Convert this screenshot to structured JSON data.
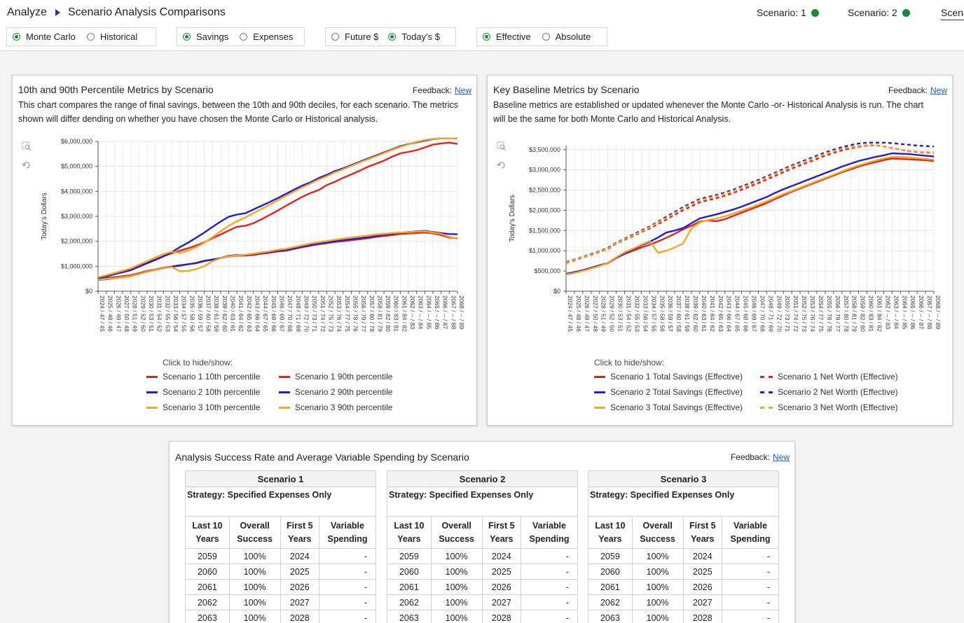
{
  "header": {
    "breadcrumb_root": "Analyze",
    "breadcrumb_page": "Scenario Analysis Comparisons",
    "scenarios": [
      {
        "label": "Scenario: 1",
        "status_color": "#1a8a3a"
      },
      {
        "label": "Scenario: 2",
        "status_color": "#1a8a3a"
      },
      {
        "label": "Scena"
      }
    ]
  },
  "toggles": {
    "analysis": {
      "options": [
        "Monte Carlo",
        "Historical"
      ],
      "selected": "Monte Carlo"
    },
    "measure": {
      "options": [
        "Savings",
        "Expenses"
      ],
      "selected": "Savings"
    },
    "dollars": {
      "options": [
        "Future $",
        "Today's $"
      ],
      "selected": "Today's $"
    },
    "mode": {
      "options": [
        "Effective",
        "Absolute"
      ],
      "selected": "Effective"
    }
  },
  "left_card": {
    "title": "10th and 90th Percentile Metrics by Scenario",
    "feedback_label": "Feedback:",
    "feedback_link": "New",
    "description_1": "This chart compares the range of final savings, between the 10th and 90th deciles, for each scenario. The metrics",
    "description_2": "shown will differ dending on whether you have chosen the Monte Carlo or Historical analysis.",
    "legend_title": "Click to hide/show:"
  },
  "right_card": {
    "title": "Key Baseline Metrics by Scenario",
    "feedback_label": "Feedback:",
    "feedback_link": "New",
    "description_1": "Baseline metrics are established or updated whenever the Monte Carlo -or- Historical Analysis is run. The chart",
    "description_2": "will be the same for both Monte Carlo and Historical Analysis.",
    "legend_title": "Click to hide/show:"
  },
  "colors": {
    "scenario1": "#e8211c",
    "scenario2": "#1f1fd1",
    "scenario3": "#f5a623"
  },
  "icons": [
    "zoom-icon",
    "reset-icon"
  ],
  "chart_data": [
    {
      "type": "line",
      "title": "",
      "ylabel": "Today's Dollars",
      "xlabel": "",
      "ylim": [
        0,
        6000000
      ],
      "yticks": [
        "$0",
        "$1,000,000",
        "$2,000,000",
        "$3,000,000",
        "$4,000,000",
        "$5,000,000",
        "$6,000,000"
      ],
      "categories": [
        "2024 / 47 / 45",
        "2025 / 48 / 46",
        "2026 / 49 / 47",
        "2027 / 50 / 48",
        "2028 / 51 / 49",
        "2029 / 52 / 50",
        "2030 / 53 / 51",
        "2031 / 54 / 52",
        "2032 / 55 / 53",
        "2033 / 56 / 54",
        "2034 / 57 / 55",
        "2035 / 58 / 56",
        "2036 / 59 / 57",
        "2037 / 60 / 58",
        "2038 / 61 / 59",
        "2039 / 62 / 60",
        "2040 / 63 / 61",
        "2041 / 64 / 62",
        "2042 / 65 / 63",
        "2043 / 66 / 64",
        "2044 / 67 / 65",
        "2045 / 68 / 66",
        "2046 / 69 / 67",
        "2047 / 70 / 68",
        "2048 / 71 / 69",
        "2049 / 72 / 70",
        "2050 / 73 / 71",
        "2051 / 74 / 72",
        "2052 / 75 / 73",
        "2053 / 76 / 74",
        "2054 / 77 / 75",
        "2055 / 78 / 76",
        "2056 / 79 / 77",
        "2057 / 80 / 78",
        "2058 / 81 / 79",
        "2059 / 82 / 80",
        "2060 / 83 / 81",
        "2061 / 84 / 82",
        "2062 / -- / 83",
        "2063 / -- / 84",
        "2064 / -- / 85",
        "2065 / -- / 86",
        "2066 / -- / 87",
        "2067 / -- / 88",
        "2068 / -- / 89"
      ],
      "legend_placement": "bottom",
      "grid": true,
      "series": [
        {
          "name": "Scenario 1 10th percentile",
          "color": "#e8211c",
          "dashed": false,
          "values": [
            500000,
            530000,
            560000,
            600000,
            640000,
            720000,
            810000,
            870000,
            940000,
            990000,
            1040000,
            1080000,
            1120000,
            1200000,
            1270000,
            1320000,
            1390000,
            1420000,
            1430000,
            1450000,
            1500000,
            1540000,
            1590000,
            1620000,
            1690000,
            1760000,
            1820000,
            1880000,
            1920000,
            1970000,
            2000000,
            2040000,
            2080000,
            2120000,
            2170000,
            2210000,
            2250000,
            2290000,
            2310000,
            2330000,
            2350000,
            2320000,
            2250000,
            2150000,
            2120000
          ]
        },
        {
          "name": "Scenario 1 90th percentile",
          "color": "#e8211c",
          "dashed": false,
          "values": [
            550000,
            620000,
            700000,
            780000,
            860000,
            1000000,
            1150000,
            1270000,
            1400000,
            1520000,
            1620000,
            1720000,
            1830000,
            1960000,
            2120000,
            2270000,
            2430000,
            2580000,
            2620000,
            2720000,
            2880000,
            3050000,
            3230000,
            3420000,
            3600000,
            3780000,
            3930000,
            4050000,
            4250000,
            4380000,
            4540000,
            4680000,
            4820000,
            4980000,
            5100000,
            5230000,
            5390000,
            5520000,
            5580000,
            5650000,
            5760000,
            5870000,
            5920000,
            5950000,
            5900000
          ]
        },
        {
          "name": "Scenario 2 10th percentile",
          "color": "#1f1fd1",
          "dashed": false,
          "values": [
            450000,
            480000,
            520000,
            560000,
            600000,
            690000,
            780000,
            850000,
            920000,
            980000,
            1020000,
            1080000,
            1130000,
            1220000,
            1260000,
            1330000,
            1420000,
            1450000,
            1440000,
            1480000,
            1530000,
            1570000,
            1620000,
            1650000,
            1720000,
            1790000,
            1850000,
            1910000,
            1950000,
            2000000,
            2040000,
            2080000,
            2120000,
            2160000,
            2210000,
            2260000,
            2300000,
            2340000,
            2370000,
            2400000,
            2420000,
            2370000,
            2330000,
            2290000,
            2280000
          ]
        },
        {
          "name": "Scenario 2 90th percentile",
          "color": "#1f1fd1",
          "dashed": false,
          "values": [
            520000,
            590000,
            680000,
            760000,
            840000,
            980000,
            1120000,
            1250000,
            1400000,
            1560000,
            1760000,
            1940000,
            2140000,
            2350000,
            2570000,
            2790000,
            2980000,
            3070000,
            3120000,
            3270000,
            3420000,
            3570000,
            3730000,
            3900000,
            4070000,
            4230000,
            4360000,
            4530000,
            4660000,
            4810000,
            4920000,
            5050000,
            5180000,
            5310000,
            5430000,
            5560000,
            5680000,
            5810000,
            5890000,
            5960000,
            6030000,
            6090000,
            6130000,
            6160000,
            6140000
          ]
        },
        {
          "name": "Scenario 3 10th percentile",
          "color": "#f5a623",
          "dashed": false,
          "values": [
            460000,
            490000,
            520000,
            560000,
            600000,
            690000,
            780000,
            850000,
            920000,
            970000,
            800000,
            810000,
            880000,
            1000000,
            1200000,
            1320000,
            1400000,
            1430000,
            1460000,
            1500000,
            1550000,
            1600000,
            1660000,
            1700000,
            1770000,
            1840000,
            1910000,
            1960000,
            2010000,
            2060000,
            2110000,
            2150000,
            2190000,
            2230000,
            2270000,
            2300000,
            2330000,
            2350000,
            2370000,
            2390000,
            2400000,
            2350000,
            2300000,
            2180000,
            2100000
          ]
        },
        {
          "name": "Scenario 3 90th percentile",
          "color": "#f5a623",
          "dashed": false,
          "values": [
            560000,
            640000,
            730000,
            820000,
            910000,
            1060000,
            1200000,
            1350000,
            1480000,
            1580000,
            1530000,
            1620000,
            1760000,
            1940000,
            2160000,
            2400000,
            2620000,
            2800000,
            2950000,
            3120000,
            3290000,
            3460000,
            3640000,
            3820000,
            3990000,
            4160000,
            4310000,
            4470000,
            4600000,
            4760000,
            4880000,
            5020000,
            5150000,
            5280000,
            5400000,
            5530000,
            5660000,
            5780000,
            5880000,
            5980000,
            6060000,
            6100000,
            6120000,
            6130000,
            6120000
          ]
        }
      ]
    },
    {
      "type": "line",
      "title": "",
      "ylabel": "Today's Dollars",
      "xlabel": "",
      "ylim": [
        0,
        3600000
      ],
      "yticks": [
        "$0",
        "$500,000",
        "$1,000,000",
        "$1,500,000",
        "$2,000,000",
        "$2,500,000",
        "$3,000,000",
        "$3,500,000"
      ],
      "categories": [
        "2024 / 47 / 45",
        "2025 / 48 / 46",
        "2026 / 49 / 47",
        "2027 / 50 / 48",
        "2028 / 51 / 49",
        "2029 / 52 / 50",
        "2030 / 53 / 51",
        "2031 / 54 / 52",
        "2032 / 55 / 53",
        "2033 / 56 / 54",
        "2034 / 57 / 55",
        "2035 / 58 / 56",
        "2036 / 59 / 57",
        "2037 / 60 / 58",
        "2038 / 61 / 59",
        "2039 / 62 / 60",
        "2040 / 63 / 61",
        "2041 / 64 / 62",
        "2042 / 65 / 63",
        "2043 / 66 / 64",
        "2044 / 67 / 65",
        "2045 / 68 / 66",
        "2046 / 69 / 67",
        "2047 / 70 / 68",
        "2048 / 71 / 69",
        "2049 / 72 / 70",
        "2050 / 73 / 71",
        "2051 / 74 / 72",
        "2052 / 75 / 73",
        "2053 / 76 / 74",
        "2054 / 77 / 75",
        "2055 / 78 / 76",
        "2056 / 79 / 77",
        "2057 / 80 / 78",
        "2058 / 81 / 79",
        "2059 / 82 / 80",
        "2060 / 83 / 81",
        "2061 / 84 / 82",
        "2062 / -- / 83",
        "2063 / -- / 84",
        "2064 / -- / 85",
        "2065 / -- / 86",
        "2066 / -- / 87",
        "2067 / -- / 88",
        "2068 / -- / 89"
      ],
      "legend_placement": "bottom",
      "grid": true,
      "series": [
        {
          "name": "Scenario 1 Total Savings (Effective)",
          "color": "#e8211c",
          "dashed": false,
          "values": [
            420000,
            460000,
            510000,
            570000,
            630000,
            690000,
            820000,
            920000,
            1000000,
            1080000,
            1150000,
            1230000,
            1320000,
            1420000,
            1530000,
            1620000,
            1720000,
            1750000,
            1730000,
            1780000,
            1860000,
            1940000,
            2020000,
            2100000,
            2180000,
            2280000,
            2370000,
            2460000,
            2540000,
            2620000,
            2700000,
            2780000,
            2860000,
            2940000,
            3010000,
            3080000,
            3140000,
            3190000,
            3240000,
            3280000,
            3270000,
            3260000,
            3250000,
            3240000,
            3220000
          ]
        },
        {
          "name": "Scenario 2 Total Savings (Effective)",
          "color": "#1f1fd1",
          "dashed": false,
          "values": [
            430000,
            470000,
            520000,
            580000,
            640000,
            700000,
            830000,
            930000,
            1040000,
            1130000,
            1220000,
            1330000,
            1450000,
            1500000,
            1560000,
            1680000,
            1800000,
            1850000,
            1900000,
            1960000,
            2020000,
            2090000,
            2170000,
            2250000,
            2330000,
            2430000,
            2520000,
            2600000,
            2680000,
            2760000,
            2840000,
            2920000,
            3000000,
            3080000,
            3150000,
            3220000,
            3270000,
            3320000,
            3360000,
            3410000,
            3400000,
            3390000,
            3370000,
            3350000,
            3330000
          ]
        },
        {
          "name": "Scenario 3 Total Savings (Effective)",
          "color": "#f5a623",
          "dashed": false,
          "values": [
            410000,
            450000,
            500000,
            560000,
            620000,
            700000,
            840000,
            960000,
            1050000,
            1150000,
            1240000,
            950000,
            1000000,
            1080000,
            1180000,
            1550000,
            1700000,
            1760000,
            1800000,
            1850000,
            1920000,
            1990000,
            2060000,
            2140000,
            2220000,
            2310000,
            2400000,
            2480000,
            2560000,
            2640000,
            2720000,
            2800000,
            2880000,
            2960000,
            3040000,
            3110000,
            3170000,
            3230000,
            3280000,
            3320000,
            3320000,
            3310000,
            3290000,
            3270000,
            3250000
          ]
        },
        {
          "name": "Scenario 1 Net Worth (Effective)",
          "color": "#e8211c",
          "dashed": true,
          "values": [
            700000,
            760000,
            830000,
            900000,
            970000,
            1040000,
            1180000,
            1270000,
            1360000,
            1460000,
            1550000,
            1660000,
            1770000,
            1890000,
            2000000,
            2100000,
            2200000,
            2250000,
            2300000,
            2360000,
            2430000,
            2510000,
            2590000,
            2670000,
            2760000,
            2850000,
            2940000,
            3030000,
            3110000,
            3190000,
            3270000,
            3350000,
            3420000,
            3480000,
            3530000,
            3570000,
            3600000,
            3610000,
            3580000,
            3540000,
            3500000,
            3460000,
            3440000,
            3430000,
            3420000
          ]
        },
        {
          "name": "Scenario 2 Net Worth (Effective)",
          "color": "#1f1fd1",
          "dashed": true,
          "values": [
            720000,
            780000,
            850000,
            920000,
            990000,
            1070000,
            1200000,
            1300000,
            1400000,
            1500000,
            1600000,
            1720000,
            1840000,
            1960000,
            2080000,
            2180000,
            2280000,
            2330000,
            2380000,
            2440000,
            2510000,
            2590000,
            2670000,
            2750000,
            2840000,
            2930000,
            3020000,
            3110000,
            3190000,
            3270000,
            3350000,
            3430000,
            3500000,
            3560000,
            3610000,
            3650000,
            3680000,
            3690000,
            3680000,
            3660000,
            3640000,
            3620000,
            3600000,
            3590000,
            3580000
          ]
        },
        {
          "name": "Scenario 3 Net Worth (Effective)",
          "color": "#f5a623",
          "dashed": true,
          "values": [
            710000,
            770000,
            840000,
            910000,
            980000,
            1050000,
            1190000,
            1290000,
            1380000,
            1480000,
            1580000,
            1700000,
            1810000,
            1930000,
            2050000,
            2150000,
            2250000,
            2300000,
            2350000,
            2410000,
            2480000,
            2560000,
            2640000,
            2720000,
            2810000,
            2900000,
            2990000,
            3080000,
            3160000,
            3240000,
            3320000,
            3400000,
            3470000,
            3520000,
            3560000,
            3590000,
            3610000,
            3620000,
            3580000,
            3540000,
            3500000,
            3470000,
            3450000,
            3440000,
            3430000
          ]
        }
      ]
    }
  ],
  "bottom_card": {
    "title": "Analysis Success Rate and Average Variable Spending by Scenario",
    "feedback_label": "Feedback:",
    "feedback_link": "New",
    "tables": [
      {
        "scenario": "Scenario 3",
        "strategy": "Strategy: Specified Expenses Only"
      },
      {
        "scenario": "Scenario 2",
        "strategy": "Strategy: Specified Expenses Only"
      },
      {
        "scenario": "Scenario 1",
        "strategy": "Strategy: Specified Expenses Only"
      }
    ],
    "columns": [
      {
        "line1": "Last 10",
        "line2": "Years"
      },
      {
        "line1": "Overall",
        "line2": "Success"
      },
      {
        "line1": "First 5",
        "line2": "Years"
      },
      {
        "line1": "Variable",
        "line2": "Spending"
      }
    ],
    "rows": [
      [
        "2059",
        "100%",
        "2024",
        "-"
      ],
      [
        "2060",
        "100%",
        "2025",
        "-"
      ],
      [
        "2061",
        "100%",
        "2026",
        "-"
      ],
      [
        "2062",
        "100%",
        "2027",
        "-"
      ],
      [
        "2063",
        "100%",
        "2028",
        "-"
      ]
    ]
  }
}
